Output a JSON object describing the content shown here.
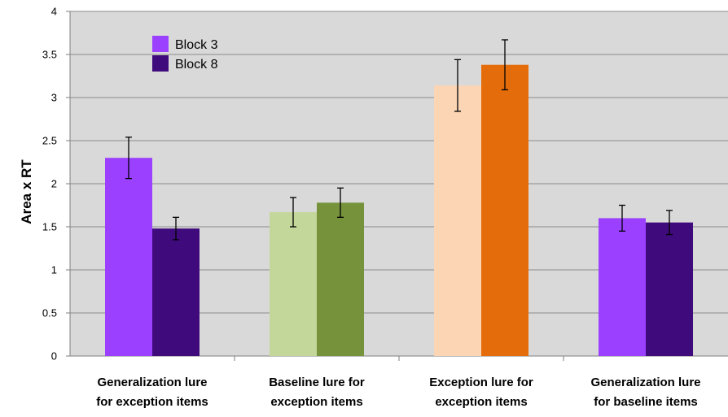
{
  "chart_data": {
    "type": "bar",
    "ylabel": "Area x RT",
    "xlabel": "",
    "ylim": [
      0,
      4
    ],
    "yticks": [
      "0",
      "0.5",
      "1",
      "1.5",
      "2",
      "2.5",
      "3",
      "3.5",
      "4"
    ],
    "grid": true,
    "legend_position": "top-left",
    "categories": [
      [
        "Generalization lure",
        "for exception items"
      ],
      [
        "Baseline lure for",
        "exception items"
      ],
      [
        "Exception lure for",
        "exception items"
      ],
      [
        "Generalization lure",
        "for baseline items"
      ]
    ],
    "series": [
      {
        "name": "Block 3",
        "values": [
          2.3,
          1.67,
          3.14,
          1.6
        ],
        "errors": [
          0.24,
          0.17,
          0.3,
          0.15
        ],
        "colors": [
          "#9b40ff",
          "#c4d79b",
          "#fcd5b4",
          "#9b40ff"
        ]
      },
      {
        "name": "Block 8",
        "values": [
          1.48,
          1.78,
          3.38,
          1.55
        ],
        "errors": [
          0.13,
          0.17,
          0.29,
          0.14
        ],
        "colors": [
          "#3f0a7c",
          "#76933c",
          "#e46c0a",
          "#3f0a7c"
        ]
      }
    ],
    "legend": [
      {
        "label": "Block 3",
        "color": "#9b40ff"
      },
      {
        "label": "Block 8",
        "color": "#3f0a7c"
      }
    ],
    "plot_background": "#d9d9d9",
    "gridline_color": "#8c8c8c"
  }
}
